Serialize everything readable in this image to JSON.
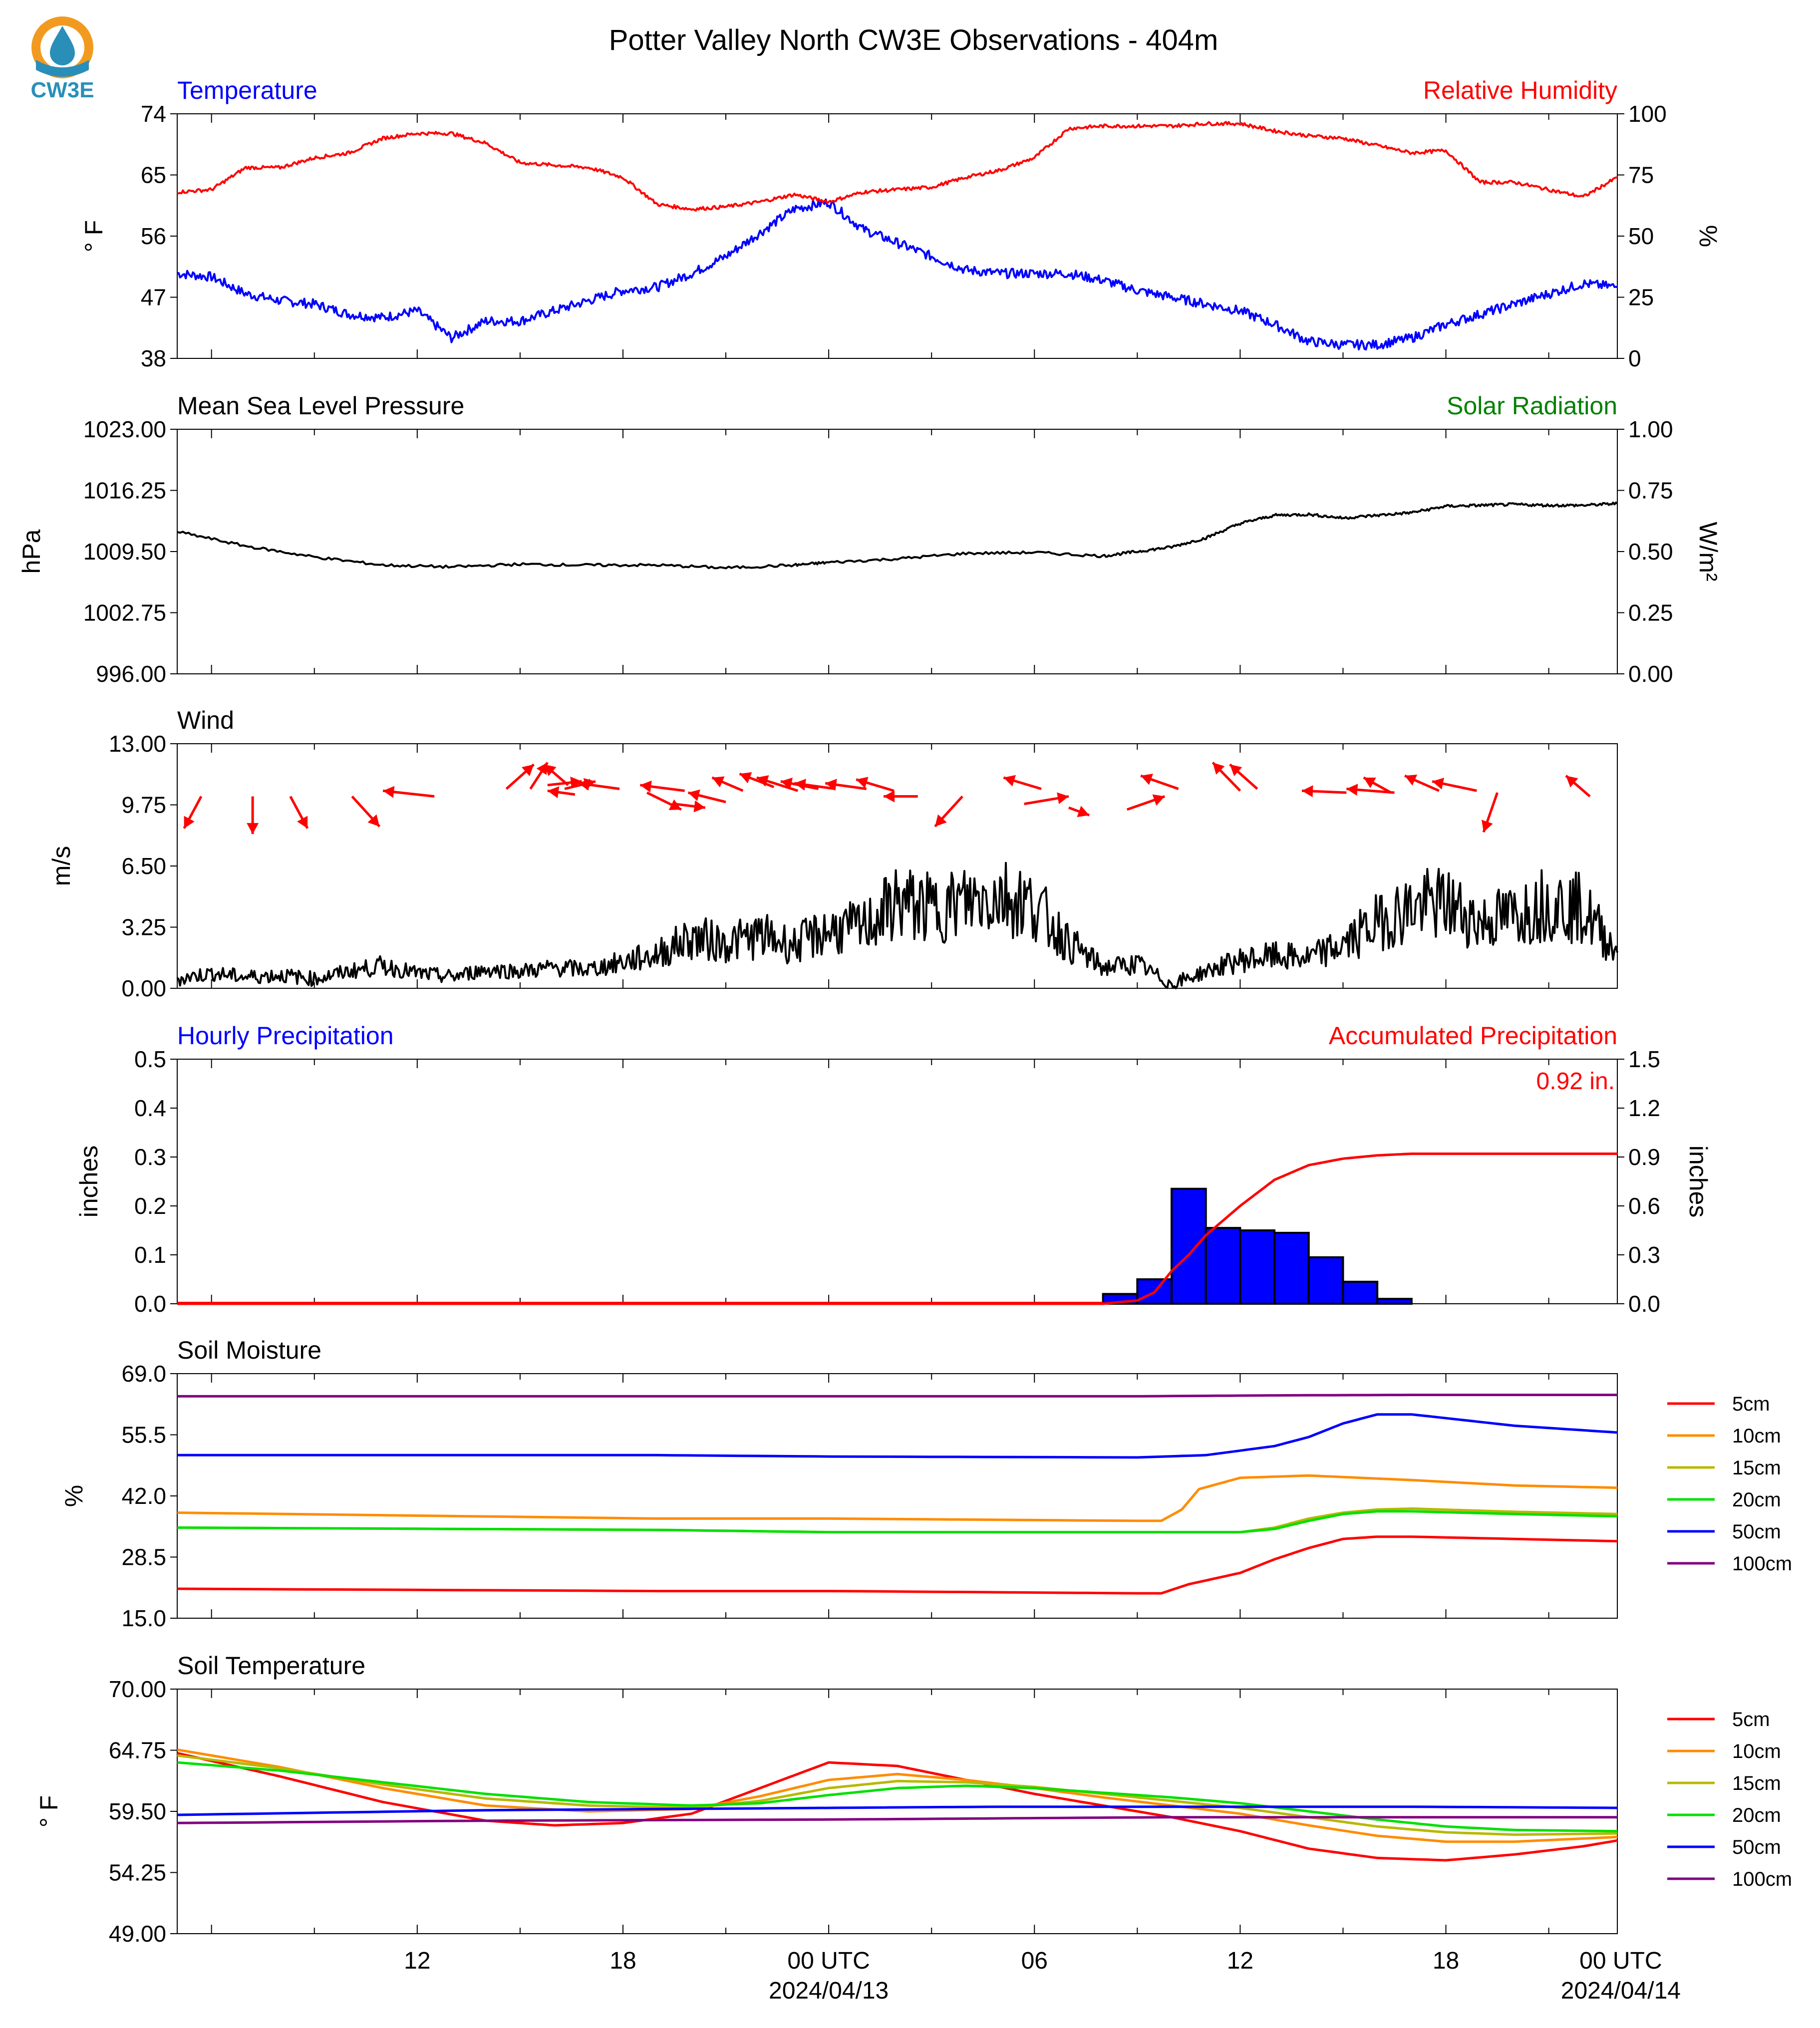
{
  "title": "Potter Valley North CW3E Observations - 404m",
  "logo": {
    "text": "CW3E",
    "colors": {
      "ring": "#f29a1f",
      "drop": "#2a8fb8",
      "text": "#2a8fb8"
    }
  },
  "colors": {
    "blue": "#0000ff",
    "red": "#ff0000",
    "green": "#008000",
    "black": "#000000",
    "orange": "#ff8c00",
    "olive": "#b8b800",
    "lime": "#00e000",
    "purple": "#800080"
  },
  "x_axis": {
    "tick_labels": [
      "12",
      "18",
      "00 UTC",
      "06",
      "12",
      "18",
      "00 UTC"
    ],
    "date_labels": [
      "2024/04/13",
      "2024/04/14"
    ],
    "x_range_hours": [
      -19,
      23
    ]
  },
  "chart_data": [
    {
      "type": "line",
      "title_left": "Temperature",
      "title_right": "Relative Humidity",
      "ylabel_left": "° F",
      "ylabel_right": "%",
      "yticks_left": [
        "38",
        "47",
        "56",
        "65",
        "74"
      ],
      "yticks_right": [
        "0",
        "25",
        "50",
        "75",
        "100"
      ],
      "ylim_left": [
        38,
        74
      ],
      "ylim_right": [
        0,
        100
      ],
      "series": [
        {
          "axis": "left",
          "color": "#0000ff",
          "x": [
            -19,
            -18,
            -17,
            -16,
            -15,
            -14,
            -13,
            -12,
            -11,
            -10,
            -9,
            -8,
            -7,
            -6,
            -5,
            -4,
            -3,
            -2,
            -1,
            0,
            1,
            2,
            3,
            4,
            5,
            6,
            7,
            8,
            9,
            10,
            11,
            12,
            13,
            14,
            15,
            16,
            17,
            18,
            19,
            20,
            21,
            22,
            23
          ],
          "values": [
            50.5,
            50,
            47.5,
            46.5,
            46,
            44.5,
            44,
            45,
            41,
            43.5,
            43.5,
            45,
            46.5,
            48,
            48.5,
            50.5,
            53,
            56.5,
            60,
            61,
            57,
            55,
            53,
            51,
            50.5,
            50.5,
            50.5,
            49.5,
            48,
            47,
            46,
            45,
            43,
            40.5,
            40,
            40,
            41,
            43,
            44.5,
            46,
            47.5,
            49,
            48.5
          ]
        },
        {
          "axis": "right",
          "color": "#ff0000",
          "x": [
            -19,
            -18,
            -17,
            -16,
            -15,
            -14,
            -13,
            -12,
            -11,
            -10,
            -9,
            -8,
            -7,
            -6,
            -5,
            -4,
            -3,
            -2,
            -1,
            0,
            1,
            2,
            3,
            4,
            5,
            6,
            7,
            8,
            9,
            10,
            11,
            12,
            13,
            14,
            15,
            16,
            17,
            18,
            19,
            20,
            21,
            22,
            23
          ],
          "values": [
            68,
            69,
            78,
            78,
            82,
            84,
            90,
            92,
            92,
            88,
            80,
            79,
            78,
            74,
            63,
            61,
            62,
            64,
            67,
            64,
            68,
            69,
            70,
            74,
            77,
            82,
            94,
            95,
            95,
            95,
            96,
            96,
            93,
            91,
            90,
            87,
            84,
            85,
            72,
            72,
            69,
            66,
            74
          ]
        }
      ]
    },
    {
      "type": "line",
      "title_left": "Mean Sea Level Pressure",
      "title_right": "Solar Radiation",
      "ylabel_left": "hPa",
      "ylabel_right": "W/m²",
      "yticks_left": [
        "996.00",
        "1002.75",
        "1009.50",
        "1016.25",
        "1023.00"
      ],
      "yticks_right": [
        "0.00",
        "0.25",
        "0.50",
        "0.75",
        "1.00"
      ],
      "ylim_left": [
        996,
        1023
      ],
      "ylim_right": [
        0,
        1
      ],
      "series": [
        {
          "axis": "left",
          "color": "#000000",
          "x": [
            -19,
            -17,
            -15,
            -13,
            -11,
            -9,
            -7,
            -5,
            -3,
            -1,
            0,
            2,
            4,
            6,
            8,
            9,
            10,
            11,
            12,
            13,
            14,
            15,
            16,
            17,
            18,
            19,
            20,
            21,
            22,
            23
          ],
          "values": [
            1011.7,
            1010.1,
            1008.9,
            1008.0,
            1007.8,
            1008.1,
            1008.0,
            1008.0,
            1007.7,
            1008.0,
            1008.3,
            1008.7,
            1009.3,
            1009.4,
            1009.0,
            1009.5,
            1010.0,
            1011.0,
            1012.6,
            1013.5,
            1013.6,
            1013.2,
            1013.5,
            1013.8,
            1014.5,
            1014.6,
            1014.7,
            1014.6,
            1014.6,
            1014.8
          ]
        }
      ]
    },
    {
      "type": "line",
      "title_left": "Wind",
      "ylabel_left": "m/s",
      "yticks_left": [
        "0.00",
        "3.25",
        "6.50",
        "9.75",
        "13.00"
      ],
      "ylim_left": [
        0,
        13
      ],
      "series": [
        {
          "axis": "left",
          "color": "#000000",
          "x": [
            -19,
            -18,
            -17,
            -16,
            -15,
            -14,
            -13,
            -12,
            -11,
            -10,
            -9,
            -8,
            -7,
            -6,
            -5,
            -4,
            -3,
            -2,
            -1,
            0,
            1,
            2,
            3,
            4,
            5,
            6,
            7,
            8,
            9,
            10,
            11,
            12,
            13,
            14,
            15,
            16,
            17,
            18,
            19,
            20,
            21,
            22,
            23
          ],
          "values": [
            0.5,
            0.8,
            0.6,
            0.7,
            0.5,
            0.9,
            1.2,
            0.8,
            0.6,
            1.0,
            0.9,
            1.1,
            1.0,
            1.4,
            1.8,
            2.7,
            2.4,
            2.8,
            2.3,
            3.1,
            3.2,
            4.6,
            4.2,
            4.6,
            5.0,
            4.4,
            2.4,
            1.1,
            1.3,
            0.2,
            0.9,
            1.5,
            1.7,
            1.6,
            2.3,
            3.5,
            4.3,
            4.5,
            3.5,
            3.9,
            4.6,
            4.2,
            1.9
          ]
        },
        {
          "axis": "left",
          "type": "barbs",
          "color": "#ff0000",
          "note": "wind direction arrows"
        }
      ]
    },
    {
      "type": "bar",
      "title_left": "Hourly Precipitation",
      "title_right": "Accumulated Precipitation",
      "ylabel_left": "inches",
      "ylabel_right": "inches",
      "yticks_left": [
        "0.0",
        "0.1",
        "0.2",
        "0.3",
        "0.4",
        "0.5"
      ],
      "yticks_right": [
        "0.0",
        "0.3",
        "0.6",
        "0.9",
        "1.2",
        "1.5"
      ],
      "ylim_left": [
        0,
        0.5
      ],
      "ylim_right": [
        0,
        1.5
      ],
      "annotation": "0.92 in.",
      "bars": {
        "color": "#0000ff",
        "x": [
          8,
          9,
          10,
          11,
          12,
          13,
          14,
          15,
          16
        ],
        "values": [
          0.02,
          0.05,
          0.235,
          0.155,
          0.15,
          0.145,
          0.095,
          0.045,
          0.01
        ]
      },
      "series": [
        {
          "axis": "right",
          "color": "#ff0000",
          "x": [
            -19,
            8,
            9,
            9.5,
            10,
            10.5,
            11,
            12,
            13,
            14,
            15,
            16,
            17,
            23
          ],
          "values": [
            0,
            0,
            0.02,
            0.07,
            0.2,
            0.3,
            0.42,
            0.6,
            0.76,
            0.85,
            0.89,
            0.91,
            0.92,
            0.92
          ]
        }
      ]
    },
    {
      "type": "line",
      "title_left": "Soil Moisture",
      "ylabel_left": "%",
      "yticks_left": [
        "15.0",
        "28.5",
        "42.0",
        "55.5",
        "69.0"
      ],
      "ylim_left": [
        15,
        69
      ],
      "legend": [
        "5cm",
        "10cm",
        "15cm",
        "20cm",
        "50cm",
        "100cm"
      ],
      "series": [
        {
          "name": "5cm",
          "color": "#ff0000",
          "x": [
            -19,
            -5,
            0,
            9,
            9.7,
            10.5,
            12,
            13,
            14,
            15,
            16,
            17,
            23
          ],
          "values": [
            21.5,
            21,
            21,
            20.5,
            20.5,
            22.5,
            25,
            28,
            30.5,
            32.5,
            33,
            33,
            32
          ]
        },
        {
          "name": "10cm",
          "color": "#ff8c00",
          "x": [
            -19,
            -5,
            0,
            9,
            9.7,
            10.3,
            10.8,
            12,
            14,
            17,
            20,
            23
          ],
          "values": [
            38.3,
            37,
            37,
            36.5,
            36.5,
            39,
            43.5,
            46,
            46.5,
            45.5,
            44.3,
            43.8
          ]
        },
        {
          "name": "15cm",
          "color": "#b8b800",
          "x": [
            -19,
            -5,
            0,
            9,
            12,
            13,
            14,
            15,
            16,
            17,
            20,
            23
          ],
          "values": [
            35,
            34.5,
            34,
            34,
            34,
            35,
            37,
            38.3,
            39,
            39.2,
            38.5,
            38
          ]
        },
        {
          "name": "20cm",
          "color": "#00e000",
          "x": [
            -19,
            -5,
            0,
            9,
            12,
            13,
            14,
            15,
            16,
            17,
            20,
            23
          ],
          "values": [
            35,
            34.5,
            34,
            34,
            34,
            34.7,
            36.5,
            38,
            38.6,
            38.6,
            38,
            37.5
          ]
        },
        {
          "name": "50cm",
          "color": "#0000ff",
          "x": [
            -19,
            -5,
            0,
            9,
            11,
            13,
            14,
            15,
            16,
            17,
            20,
            23
          ],
          "values": [
            51,
            51,
            50.7,
            50.5,
            51,
            53,
            55,
            58,
            60,
            60,
            57.5,
            56
          ]
        },
        {
          "name": "100cm",
          "color": "#800080",
          "x": [
            -19,
            -5,
            0,
            9,
            13,
            17,
            23
          ],
          "values": [
            64,
            64,
            64,
            64,
            64.2,
            64.3,
            64.3
          ]
        }
      ]
    },
    {
      "type": "line",
      "title_left": "Soil Temperature",
      "ylabel_left": "° F",
      "yticks_left": [
        "49.00",
        "54.25",
        "59.50",
        "64.75",
        "70.00"
      ],
      "ylim_left": [
        49,
        70
      ],
      "legend": [
        "5cm",
        "10cm",
        "15cm",
        "20cm",
        "50cm",
        "100cm"
      ],
      "series": [
        {
          "name": "5cm",
          "color": "#ff0000",
          "x": [
            -19,
            -16,
            -13,
            -10,
            -8,
            -6,
            -4,
            -2,
            0,
            2,
            4,
            6,
            8,
            10,
            12,
            14,
            16,
            18,
            20,
            22,
            23
          ],
          "values": [
            64.5,
            62.5,
            60.3,
            58.7,
            58.3,
            58.5,
            59.3,
            61.5,
            63.7,
            63.4,
            62.2,
            61,
            60,
            59,
            57.8,
            56.3,
            55.5,
            55.3,
            55.8,
            56.5,
            57
          ]
        },
        {
          "name": "10cm",
          "color": "#ff8c00",
          "x": [
            -19,
            -16,
            -13,
            -10,
            -7,
            -4,
            -2,
            0,
            2,
            4,
            6,
            8,
            10,
            12,
            14,
            16,
            18,
            20,
            23
          ],
          "values": [
            64.8,
            63.3,
            61.5,
            60,
            59.5,
            59.7,
            60.8,
            62.2,
            62.7,
            62.2,
            61.5,
            60.7,
            60,
            59.3,
            58.3,
            57.4,
            56.9,
            56.9,
            57.3
          ]
        },
        {
          "name": "15cm",
          "color": "#b8b800",
          "x": [
            -19,
            -16,
            -13,
            -10,
            -7,
            -4,
            -2,
            0,
            2,
            4,
            6,
            8,
            10,
            12,
            14,
            16,
            18,
            20,
            23
          ],
          "values": [
            64.3,
            63.2,
            61.8,
            60.6,
            60,
            59.8,
            60.4,
            61.5,
            62.1,
            62,
            61.6,
            61,
            60.4,
            59.8,
            59,
            58.2,
            57.7,
            57.5,
            57.6
          ]
        },
        {
          "name": "20cm",
          "color": "#00e000",
          "x": [
            -19,
            -16,
            -13,
            -10,
            -7,
            -4,
            -2,
            0,
            2,
            4,
            6,
            8,
            10,
            12,
            14,
            16,
            18,
            20,
            23
          ],
          "values": [
            63.7,
            63,
            62,
            61,
            60.3,
            60,
            60.2,
            60.9,
            61.5,
            61.7,
            61.5,
            61.1,
            60.7,
            60.2,
            59.5,
            58.8,
            58.2,
            57.9,
            57.8
          ]
        },
        {
          "name": "50cm",
          "color": "#0000ff",
          "x": [
            -19,
            -10,
            0,
            5,
            10,
            17,
            23
          ],
          "values": [
            59.2,
            59.6,
            59.8,
            59.9,
            59.9,
            59.9,
            59.8
          ]
        },
        {
          "name": "100cm",
          "color": "#800080",
          "x": [
            -19,
            -10,
            0,
            5,
            10,
            17,
            23
          ],
          "values": [
            58.5,
            58.7,
            58.8,
            58.9,
            59,
            59,
            59
          ]
        }
      ]
    }
  ]
}
